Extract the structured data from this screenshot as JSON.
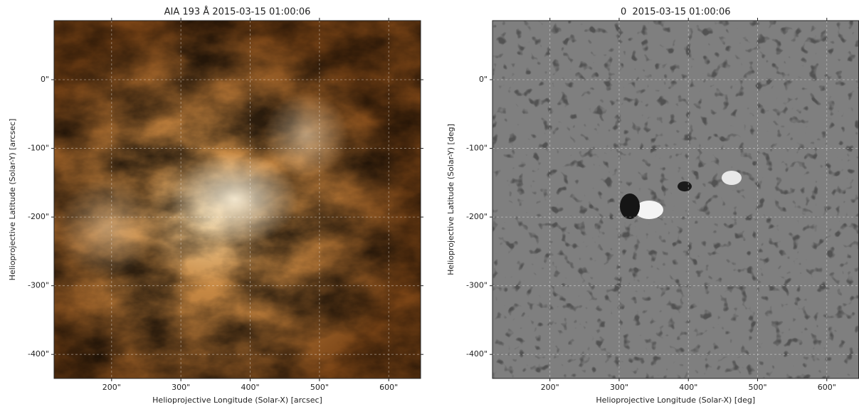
{
  "chart_data": [
    {
      "type": "image",
      "title": "AIA 193 Å 2015-03-15 01:00:06",
      "xlabel": "Helioprojective Longitude (Solar-X) [arcsec]",
      "ylabel": "Helioprojective Latitude (Solar-Y) [arcsec]",
      "xlim": [
        117,
        646
      ],
      "ylim": [
        -435,
        86
      ],
      "xticks": [
        {
          "value": 200,
          "label": "200\""
        },
        {
          "value": 300,
          "label": "300\""
        },
        {
          "value": 400,
          "label": "400\""
        },
        {
          "value": 500,
          "label": "500\""
        },
        {
          "value": 600,
          "label": "600\""
        }
      ],
      "yticks": [
        {
          "value": 0,
          "label": "0\""
        },
        {
          "value": -100,
          "label": "-100\""
        },
        {
          "value": -200,
          "label": "-200\""
        },
        {
          "value": -300,
          "label": "-300\""
        },
        {
          "value": -400,
          "label": "-400\""
        }
      ],
      "grid": true
    },
    {
      "type": "image",
      "title": "0  2015-03-15 01:00:06",
      "xlabel": "Helioprojective Longitude (Solar-X) [deg]",
      "ylabel": "Helioprojective Latitude (Solar-Y) [deg]",
      "xlim": [
        117,
        646
      ],
      "ylim": [
        -435,
        86
      ],
      "xticks": [
        {
          "value": 200,
          "label": "200\""
        },
        {
          "value": 300,
          "label": "300\""
        },
        {
          "value": 400,
          "label": "400\""
        },
        {
          "value": 500,
          "label": "500\""
        },
        {
          "value": 600,
          "label": "600\""
        }
      ],
      "yticks": [
        {
          "value": 0,
          "label": "0\""
        },
        {
          "value": -100,
          "label": "-100\""
        },
        {
          "value": -200,
          "label": "-200\""
        },
        {
          "value": -300,
          "label": "-300\""
        },
        {
          "value": -400,
          "label": "-400\""
        }
      ],
      "grid": true
    }
  ]
}
